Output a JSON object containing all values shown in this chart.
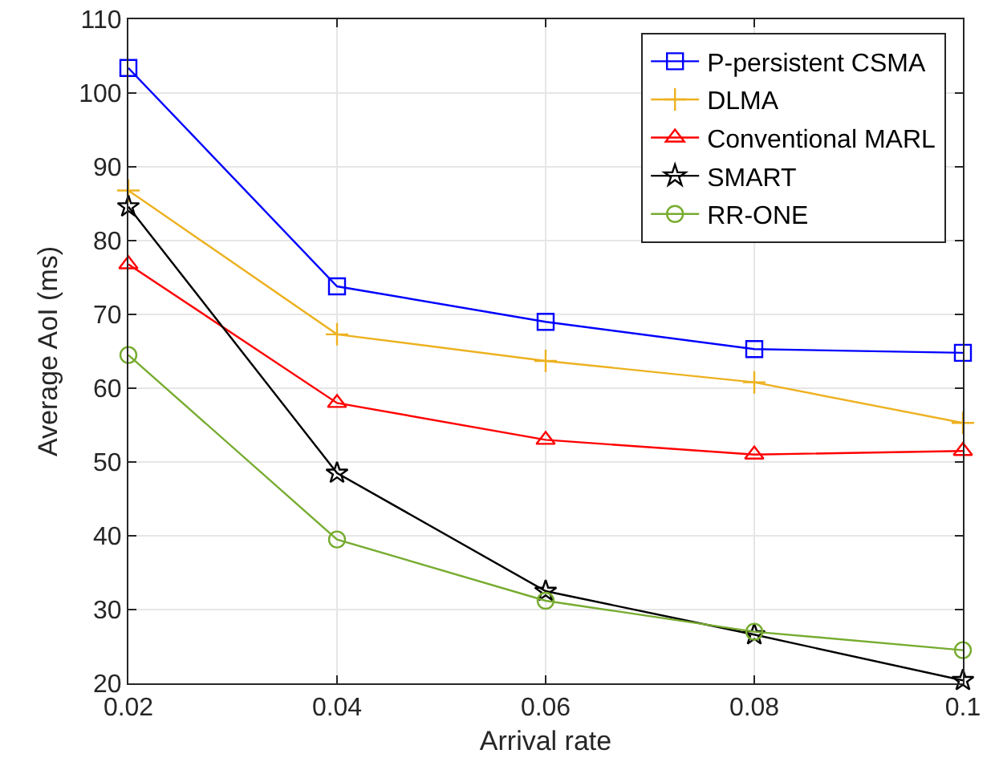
{
  "chart_data": {
    "type": "line",
    "xlabel": "Arrival rate",
    "ylabel": "Average AoI (ms)",
    "x": [
      0.02,
      0.04,
      0.06,
      0.08,
      0.1
    ],
    "xlim": [
      0.02,
      0.1
    ],
    "xticks": [
      0.02,
      0.04,
      0.06,
      0.08,
      0.1
    ],
    "ylim": [
      20,
      110
    ],
    "yticks": [
      20,
      30,
      40,
      50,
      60,
      70,
      80,
      90,
      100,
      110
    ],
    "grid": true,
    "legend": "top right",
    "line_style": "solid",
    "series": [
      {
        "name": "P-persistent CSMA",
        "color": "#0000ff",
        "marker": "square",
        "values": [
          103.4,
          73.8,
          69,
          65.3,
          64.8
        ]
      },
      {
        "name": "DLMA",
        "color": "#edb120",
        "marker": "cross",
        "values": [
          86.8,
          67.3,
          63.7,
          60.8,
          55.3
        ]
      },
      {
        "name": "Conventional MARL",
        "color": "#ff0000",
        "marker": "triangle",
        "values": [
          76.8,
          58,
          53,
          51,
          51.5
        ]
      },
      {
        "name": "SMART",
        "color": "#000000",
        "marker": "star",
        "values": [
          84.6,
          48.5,
          32.5,
          26.6,
          20.4
        ]
      },
      {
        "name": "RR-ONE",
        "color": "#77ac30",
        "marker": "circle",
        "values": [
          64.5,
          39.5,
          31.2,
          27,
          24.5
        ]
      }
    ]
  }
}
